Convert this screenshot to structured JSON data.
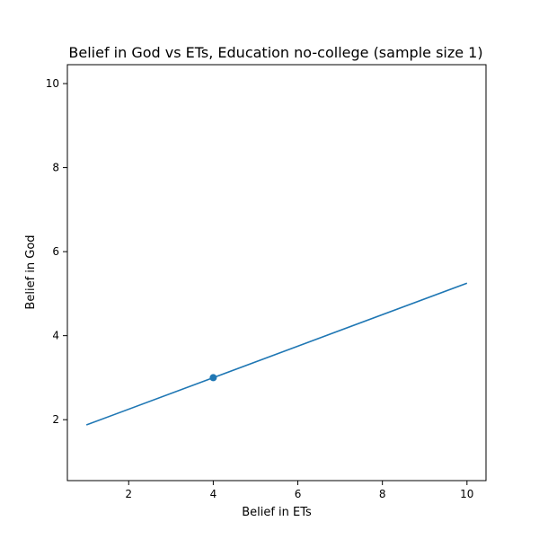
{
  "chart_data": {
    "type": "scatter",
    "title": "Belief in God vs ETs, Education no-college (sample size 1)",
    "xlabel": "Belief in ETs",
    "ylabel": "Belief in God",
    "xlim": [
      0.55,
      10.45
    ],
    "ylim": [
      0.55,
      10.45
    ],
    "xticks": [
      2,
      4,
      6,
      8,
      10
    ],
    "yticks": [
      2,
      4,
      6,
      8,
      10
    ],
    "grid": false,
    "series": [
      {
        "kind": "scatter",
        "points": [
          {
            "x": 4,
            "y": 3
          }
        ],
        "color": "#1f77b4"
      },
      {
        "kind": "line",
        "points": [
          {
            "x": 1,
            "y": 1.875
          },
          {
            "x": 10,
            "y": 5.25
          }
        ],
        "color": "#1f77b4"
      }
    ]
  }
}
